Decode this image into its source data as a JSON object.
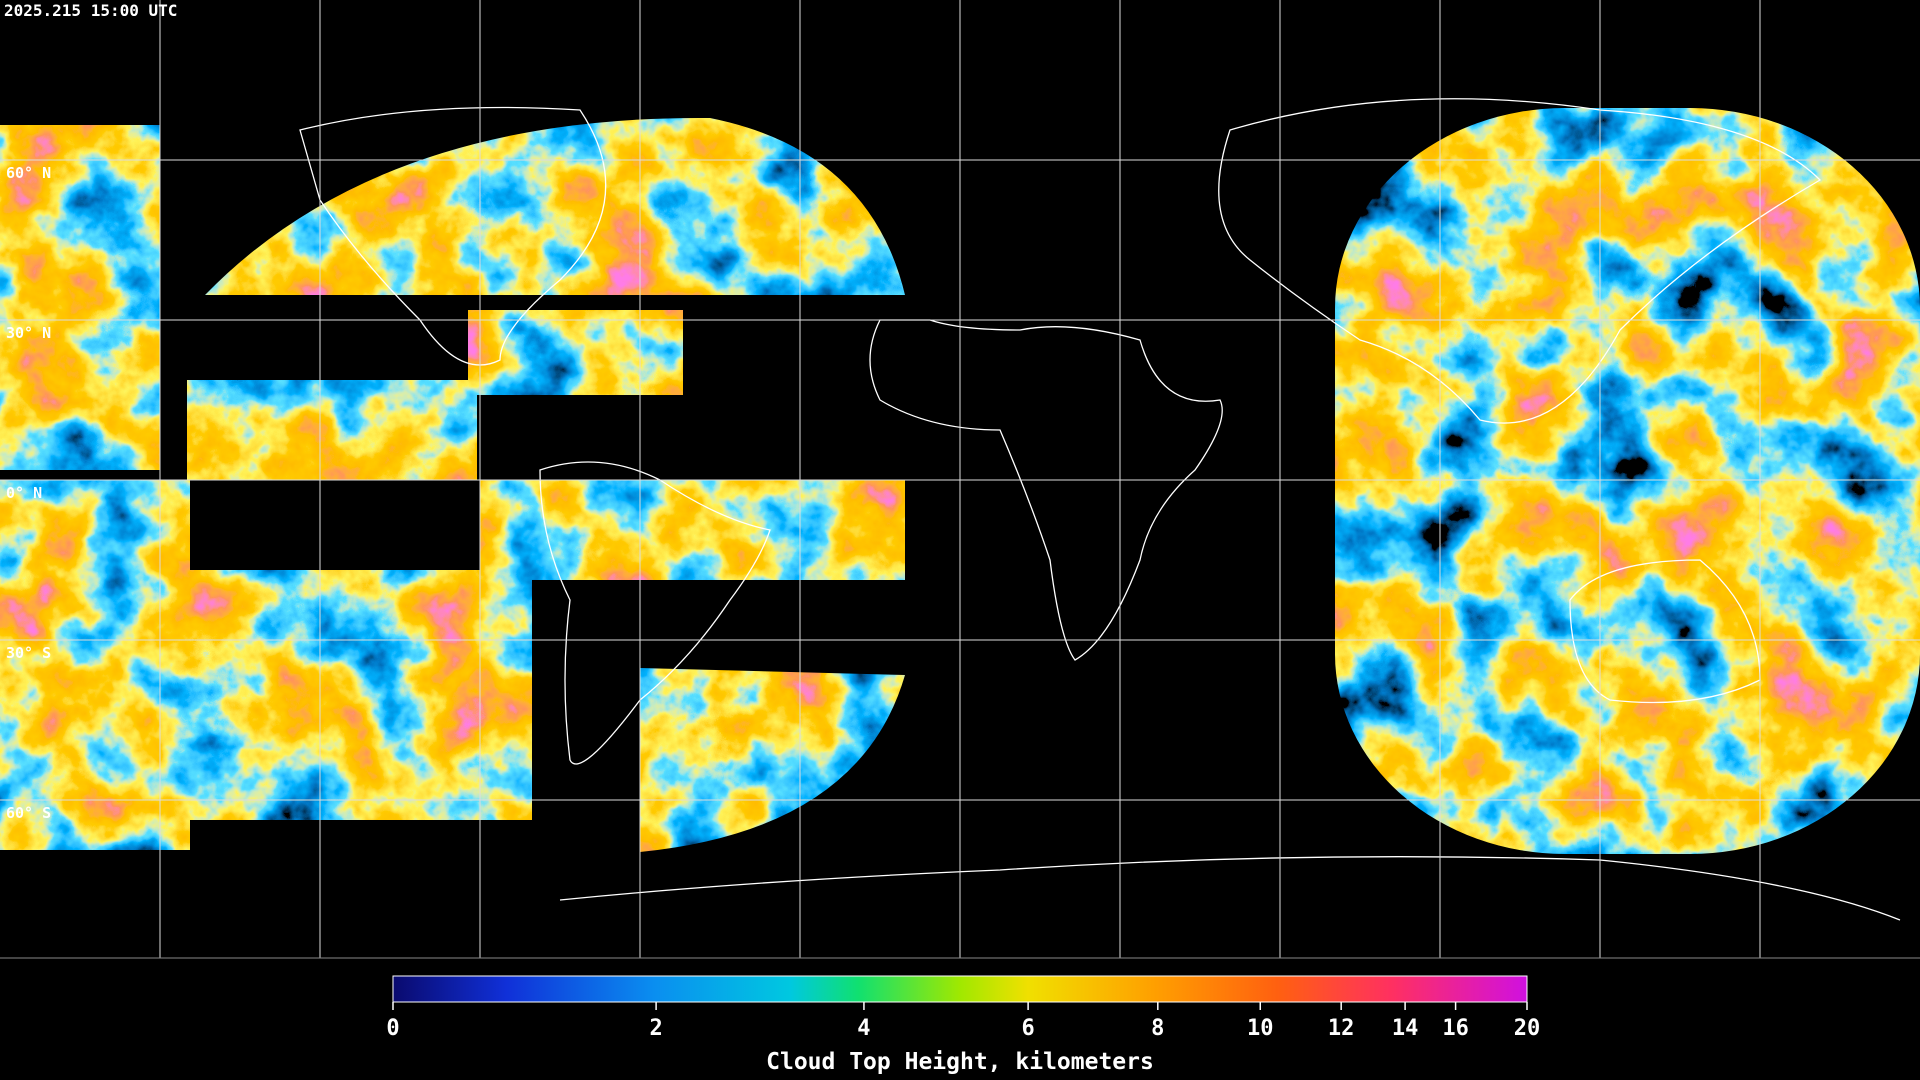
{
  "timestamp": "2025.215 15:00 UTC",
  "map": {
    "lat_labels": [
      "60° N",
      "30° N",
      "0° N",
      "30° S",
      "60° S"
    ]
  },
  "colorbar": {
    "label": "Cloud Top Height, kilometers",
    "ticks": [
      0,
      2,
      4,
      6,
      8,
      10,
      12,
      14,
      16,
      20
    ]
  }
}
